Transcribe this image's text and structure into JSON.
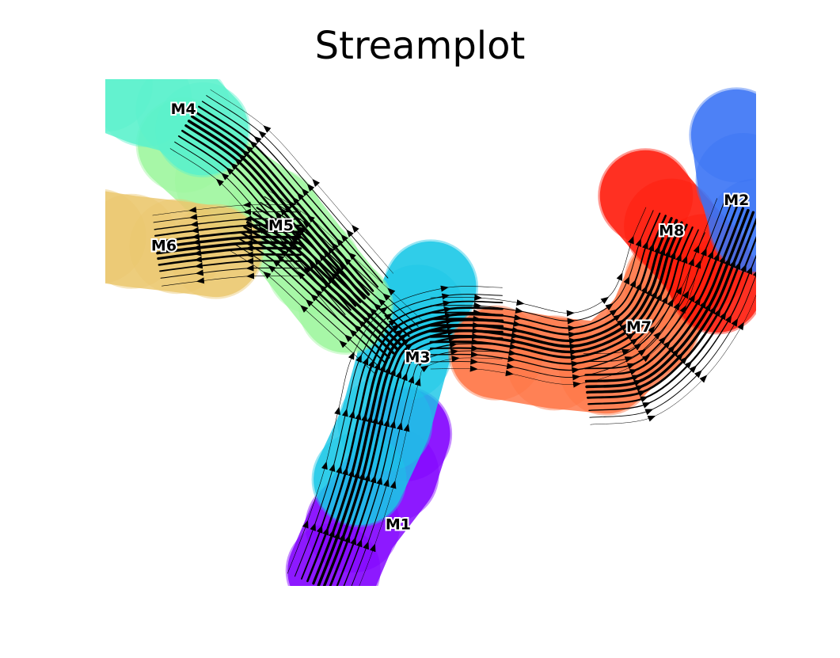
{
  "chart_data": {
    "type": "scatter",
    "subtype": "velocity streamplot",
    "title": "Streamplot",
    "xlabel": "",
    "ylabel": "",
    "axes_visible": false,
    "grid": false,
    "xlim": [
      0,
      100
    ],
    "ylim": [
      0,
      100
    ],
    "clusters": [
      {
        "name": "M1",
        "color": "#8000ff",
        "label_pos": [
          45,
          12
        ],
        "trajectory": [
          [
            35,
            3
          ],
          [
            38,
            12
          ],
          [
            44,
            22
          ],
          [
            46,
            30
          ]
        ]
      },
      {
        "name": "M3",
        "color": "#1ac7e6",
        "label_pos": [
          48,
          45
        ],
        "trajectory": [
          [
            39,
            21
          ],
          [
            43,
            32
          ],
          [
            46,
            46
          ],
          [
            48,
            54
          ],
          [
            50,
            59
          ]
        ]
      },
      {
        "name": "M5",
        "color": "#9ef79e",
        "label_pos": [
          27,
          71
        ],
        "trajectory": [
          [
            12,
            87
          ],
          [
            18,
            80
          ],
          [
            26,
            73
          ],
          [
            32,
            63
          ],
          [
            37,
            55
          ]
        ]
      },
      {
        "name": "M4",
        "color": "#5af2cc",
        "label_pos": [
          12,
          94
        ],
        "trajectory": [
          [
            0,
            99
          ],
          [
            6,
            96
          ],
          [
            12,
            94
          ],
          [
            15,
            90
          ]
        ]
      },
      {
        "name": "M6",
        "color": "#ebc76e",
        "label_pos": [
          9,
          67
        ],
        "trajectory": [
          [
            -1,
            69
          ],
          [
            4,
            68
          ],
          [
            11,
            67
          ],
          [
            17,
            66
          ]
        ]
      },
      {
        "name": "M7",
        "color": "#ff7343",
        "label_pos": [
          82,
          51
        ],
        "trajectory": [
          [
            60,
            46
          ],
          [
            69,
            44
          ],
          [
            77,
            43
          ],
          [
            84,
            51
          ],
          [
            87,
            60
          ]
        ]
      },
      {
        "name": "M8",
        "color": "#ff1a0a",
        "label_pos": [
          87,
          70
        ],
        "trajectory": [
          [
            83,
            77
          ],
          [
            87,
            71
          ],
          [
            92,
            64
          ],
          [
            94,
            59
          ]
        ]
      },
      {
        "name": "M2",
        "color": "#3a74f5",
        "label_pos": [
          97,
          76
        ],
        "trajectory": [
          [
            97,
            89
          ],
          [
            98,
            80
          ],
          [
            100,
            71
          ]
        ]
      }
    ],
    "flow_paths": [
      {
        "name": "M1-to-M3",
        "points": [
          [
            33,
            0
          ],
          [
            36,
            10
          ],
          [
            39,
            22
          ],
          [
            41,
            33
          ],
          [
            43,
            43
          ],
          [
            46,
            49
          ],
          [
            53,
            52
          ],
          [
            61,
            52
          ]
        ]
      },
      {
        "name": "M3-to-M7",
        "points": [
          [
            50,
            50
          ],
          [
            57,
            50
          ],
          [
            63,
            49
          ],
          [
            72,
            47
          ],
          [
            80,
            51
          ],
          [
            84,
            58
          ],
          [
            86,
            66
          ],
          [
            88,
            72
          ]
        ]
      },
      {
        "name": "M7-to-M2",
        "points": [
          [
            74,
            39
          ],
          [
            82,
            40
          ],
          [
            88,
            46
          ],
          [
            93,
            55
          ],
          [
            96,
            64
          ],
          [
            99,
            74
          ]
        ]
      },
      {
        "name": "M3-to-M5",
        "points": [
          [
            45,
            47
          ],
          [
            40,
            53
          ],
          [
            34,
            60
          ],
          [
            28,
            67
          ],
          [
            22,
            72
          ]
        ]
      },
      {
        "name": "M5-to-M4",
        "points": [
          [
            40,
            57
          ],
          [
            34,
            66
          ],
          [
            28,
            75
          ],
          [
            21,
            85
          ],
          [
            13,
            92
          ]
        ]
      },
      {
        "name": "M5-to-M6",
        "points": [
          [
            30,
            68
          ],
          [
            22,
            68
          ],
          [
            14,
            67
          ],
          [
            8,
            66
          ]
        ]
      }
    ]
  }
}
